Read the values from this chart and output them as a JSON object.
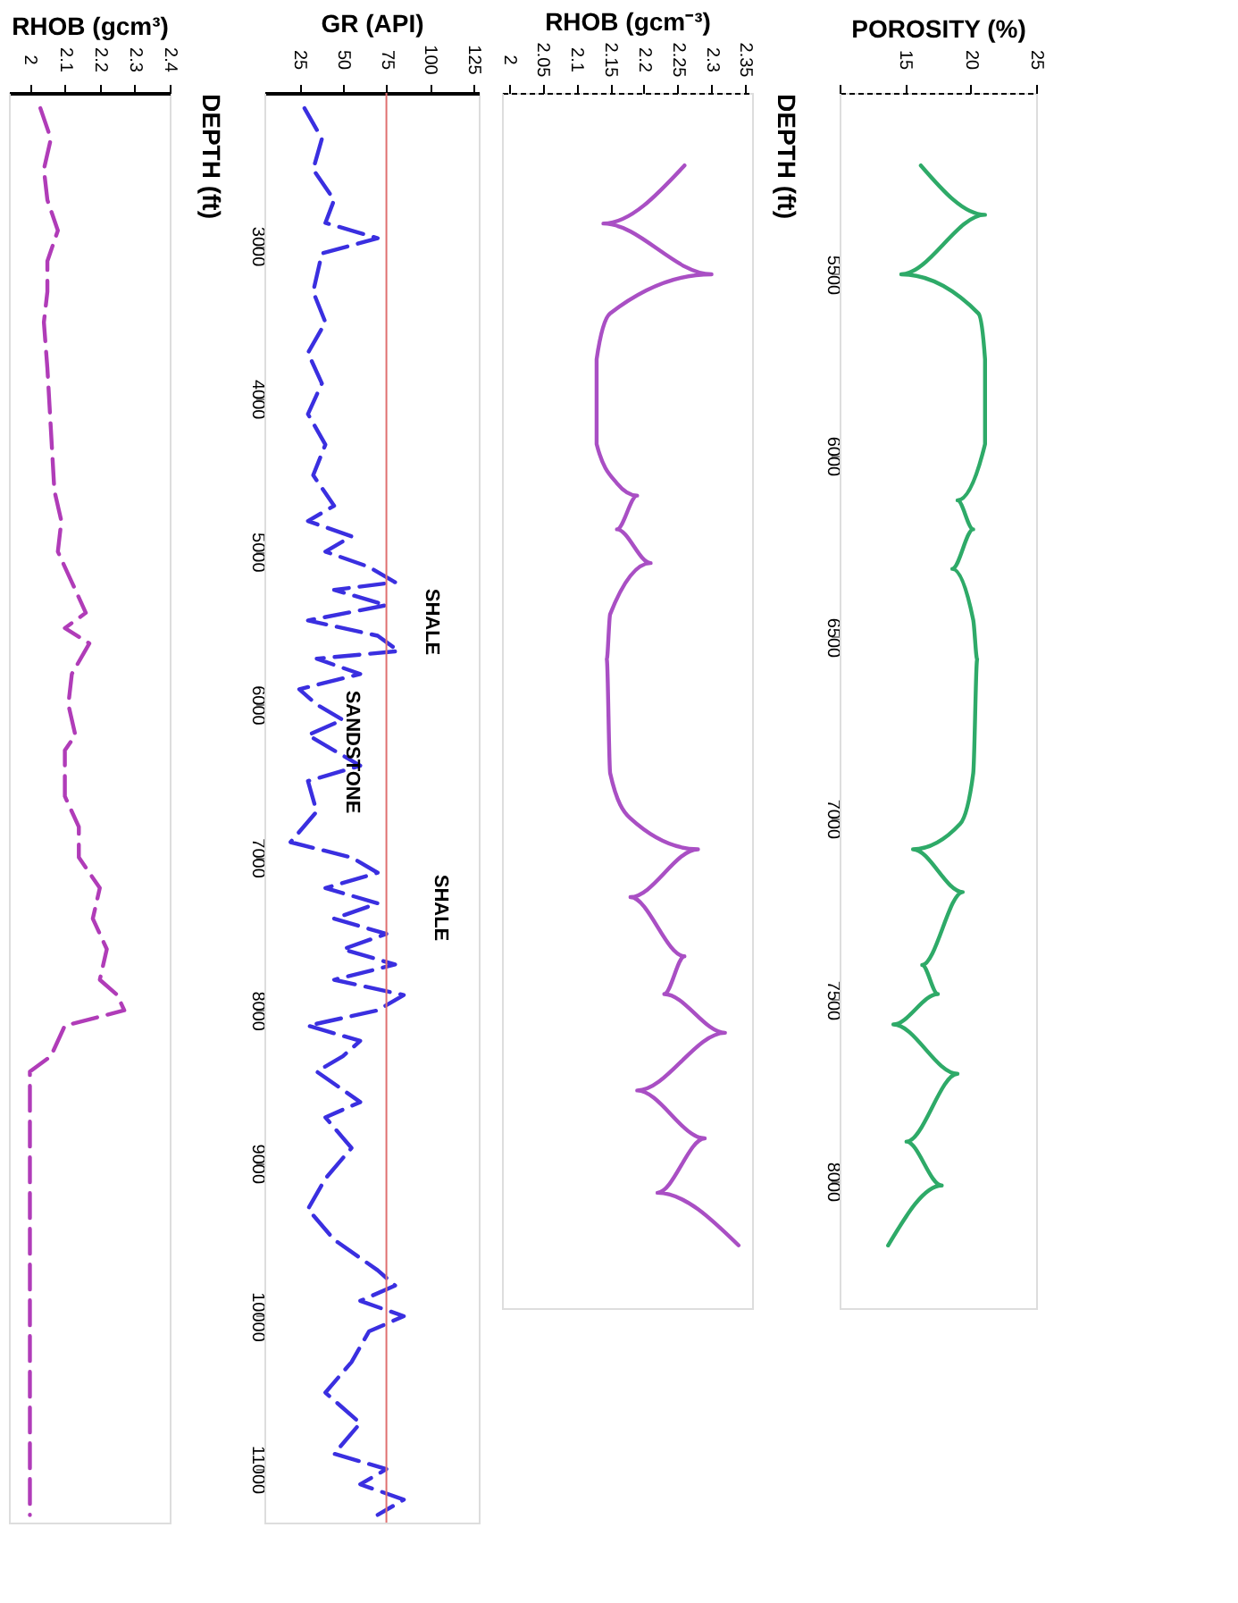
{
  "chart_data": [
    {
      "type": "line",
      "xlabel": "RHOB (gcm³)",
      "xlim": [
        1.94,
        2.4
      ],
      "xticks": [
        2,
        2.1,
        2.2,
        2.3,
        2.4
      ],
      "ylim": [
        11350,
        2000
      ],
      "yticks": [
        3000,
        4000,
        5000,
        6000,
        7000,
        8000,
        9000,
        10000,
        11000
      ],
      "tick_labels": "x",
      "line_style": "dashed",
      "grid": false,
      "series": [
        {
          "color": "#b03cb8",
          "x": [
            2.03,
            2.06,
            2.04,
            2.05,
            2.08,
            2.05,
            2.05,
            2.04,
            2.05,
            2.06,
            2.07,
            2.09,
            2.08,
            2.12,
            2.16,
            2.1,
            2.17,
            2.12,
            2.11,
            2.13,
            2.1,
            2.1,
            2.14,
            2.14,
            2.2,
            2.18,
            2.22,
            2.2,
            2.25,
            2.27,
            2.1,
            2.06,
            2.0,
            2.0
          ],
          "values": [
            2100,
            2300,
            2500,
            2700,
            2900,
            3100,
            3300,
            3500,
            3800,
            4200,
            4600,
            4800,
            5000,
            5200,
            5400,
            5500,
            5600,
            5800,
            6000,
            6200,
            6300,
            6600,
            6800,
            7000,
            7200,
            7400,
            7600,
            7800,
            7900,
            8000,
            8100,
            8300,
            8400,
            11300
          ]
        }
      ]
    },
    {
      "type": "line",
      "xlabel": "GR (API)",
      "ylabel": "DEPTH  (ft)",
      "xlim": [
        5,
        128
      ],
      "xticks": [
        25,
        50,
        75,
        100,
        125
      ],
      "ylim": [
        11350,
        2000
      ],
      "yticks": [
        3000,
        4000,
        5000,
        6000,
        7000,
        8000,
        9000,
        10000,
        11000
      ],
      "line_style": "dashed",
      "grid": false,
      "ref_lines": [
        {
          "axis": "x",
          "value": 75,
          "color": "#e07070"
        }
      ],
      "annotations": [
        "SHALE",
        {
          "text": "SANDSTONE",
          "x": 55,
          "y": 6310
        },
        "SHALE"
      ],
      "series": [
        {
          "color": "#3a2fe0",
          "x": [
            28,
            38,
            33,
            45,
            40,
            70,
            38,
            33,
            40,
            30,
            38,
            30,
            40,
            33,
            45,
            30,
            55,
            40,
            65,
            80,
            45,
            75,
            30,
            70,
            82,
            35,
            60,
            25,
            35,
            50,
            30,
            60,
            30,
            35,
            20,
            55,
            70,
            40,
            70,
            45,
            75,
            50,
            80,
            45,
            85,
            70,
            30,
            60,
            50,
            35,
            60,
            40,
            55,
            40,
            30,
            45,
            70,
            80,
            60,
            85,
            65,
            55,
            40,
            60,
            45,
            75,
            60,
            85,
            70
          ],
          "values": [
            2100,
            2300,
            2500,
            2700,
            2850,
            2950,
            3050,
            3300,
            3500,
            3700,
            3900,
            4100,
            4300,
            4500,
            4700,
            4800,
            4900,
            5000,
            5100,
            5200,
            5250,
            5350,
            5450,
            5550,
            5650,
            5700,
            5800,
            5900,
            6000,
            6100,
            6200,
            6400,
            6500,
            6700,
            6900,
            7000,
            7100,
            7200,
            7300,
            7400,
            7500,
            7600,
            7700,
            7800,
            7900,
            8000,
            8100,
            8200,
            8300,
            8400,
            8600,
            8700,
            8900,
            9100,
            9300,
            9500,
            9700,
            9800,
            9900,
            10000,
            10100,
            10300,
            10500,
            10700,
            10900,
            11000,
            11100,
            11200,
            11300
          ]
        }
      ]
    },
    {
      "type": "line",
      "xlabel": "RHOB (gcm⁻³)",
      "xlim": [
        1.99,
        2.36
      ],
      "xticks": [
        2,
        2.05,
        2.1,
        2.15,
        2.2,
        2.25,
        2.3,
        2.35
      ],
      "ylim": [
        8350,
        5000
      ],
      "yticks": [
        5500,
        6000,
        6500,
        7000,
        7500,
        8000
      ],
      "tick_labels": "x",
      "line_style": "solid",
      "grid": false,
      "series": [
        {
          "color": "#a94fc4",
          "x": [
            2.26,
            2.14,
            2.3,
            2.15,
            2.13,
            2.13,
            2.16,
            2.19,
            2.16,
            2.21,
            2.15,
            2.145,
            2.15,
            2.18,
            2.28,
            2.18,
            2.26,
            2.23,
            2.32,
            2.19,
            2.29,
            2.22,
            2.34
          ],
          "values": [
            5200,
            5360,
            5500,
            5608,
            5734,
            5968,
            6076,
            6110,
            6203,
            6296,
            6437,
            6561,
            6875,
            7000,
            7085,
            7217,
            7380,
            7484,
            7591,
            7750,
            7882,
            8032,
            8177
          ]
        }
      ]
    },
    {
      "type": "line",
      "xlabel": "POROSITY (%)",
      "ylabel": "DEPTH (ft)",
      "xlim": [
        10,
        25
      ],
      "xticks": [
        {
          "value": 10,
          "label": null
        },
        15,
        20,
        25
      ],
      "ylim": [
        8350,
        5000
      ],
      "yticks": [
        5500,
        6000,
        6500,
        7000,
        7500,
        8000
      ],
      "line_style": "solid",
      "grid": false,
      "series": [
        {
          "color": "#2eaa68",
          "x": [
            16.2,
            21.1,
            14.7,
            20.6,
            21.1,
            21.1,
            19.0,
            20.2,
            18.6,
            20.2,
            20.5,
            20.2,
            19.2,
            15.6,
            19.4,
            16.3,
            17.5,
            14.1,
            19.0,
            15.1,
            17.8,
            13.7
          ],
          "values": [
            5200,
            5336,
            5500,
            5608,
            5734,
            5968,
            6123,
            6203,
            6312,
            6453,
            6561,
            6875,
            7015,
            7085,
            7203,
            7404,
            7484,
            7568,
            7704,
            7891,
            8012,
            8177
          ]
        }
      ]
    }
  ]
}
